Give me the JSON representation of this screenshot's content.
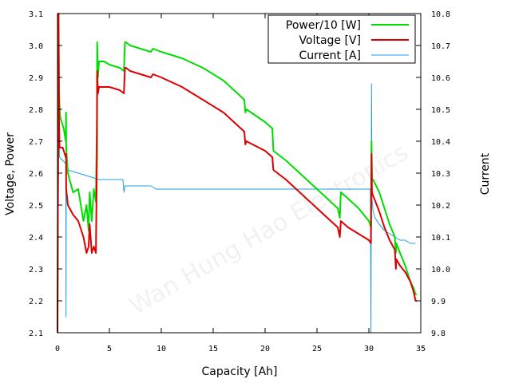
{
  "chart_data": {
    "type": "line",
    "xlabel": "Capacity [Ah]",
    "ylabel": "Voltage, Power",
    "y2label": "Current",
    "xlim": [
      0,
      35
    ],
    "ylim": [
      2.1,
      3.1
    ],
    "y2lim": [
      9.8,
      10.8
    ],
    "xticks": [
      "0",
      "5",
      "10",
      "15",
      "20",
      "25",
      "30",
      "35"
    ],
    "yticks": [
      "2.1",
      "2.2",
      "2.3",
      "2.4",
      "2.5",
      "2.6",
      "2.7",
      "2.8",
      "2.9",
      "3.0",
      "3.1"
    ],
    "y2ticks": [
      "9.8",
      "9.9",
      "10.0",
      "10.1",
      "10.2",
      "10.3",
      "10.4",
      "10.5",
      "10.6",
      "10.7",
      "10.8"
    ],
    "watermark": "Wan Hung Hao Electronics",
    "legend_position": "top-right",
    "series": [
      {
        "name": "Power/10 [W]",
        "color": "#00dd00",
        "axis": "left",
        "x": [
          0,
          0.1,
          0.15,
          0.2,
          0.25,
          0.3,
          0.4,
          0.6,
          0.8,
          0.82,
          0.84,
          1.0,
          1.5,
          2.0,
          2.5,
          2.8,
          3.0,
          3.1,
          3.3,
          3.5,
          3.7,
          3.8,
          3.82,
          3.9,
          4.0,
          4.5,
          5.0,
          6.0,
          6.4,
          6.5,
          6.6,
          7.0,
          8.0,
          9.0,
          9.2,
          10.0,
          12.0,
          14.0,
          16.0,
          18.0,
          18.1,
          18.2,
          20.0,
          20.7,
          20.8,
          22.0,
          24.0,
          26.0,
          27.0,
          27.2,
          27.3,
          28.0,
          29.0,
          30.0,
          30.2,
          30.25,
          30.3,
          30.35,
          30.4,
          31.0,
          31.5,
          32.0,
          32.5,
          32.6,
          32.65,
          33.0,
          33.5,
          34.0,
          34.3,
          34.5,
          34.6
        ],
        "y": [
          2.1,
          3.1,
          2.85,
          2.81,
          2.78,
          2.77,
          2.76,
          2.74,
          2.7,
          2.79,
          2.68,
          2.6,
          2.54,
          2.55,
          2.45,
          2.5,
          2.42,
          2.54,
          2.45,
          2.55,
          2.51,
          2.78,
          3.01,
          2.9,
          2.95,
          2.95,
          2.94,
          2.93,
          2.92,
          3.01,
          3.01,
          3.0,
          2.99,
          2.98,
          2.99,
          2.98,
          2.96,
          2.93,
          2.89,
          2.83,
          2.79,
          2.8,
          2.76,
          2.74,
          2.67,
          2.64,
          2.58,
          2.52,
          2.49,
          2.46,
          2.54,
          2.52,
          2.49,
          2.45,
          2.43,
          2.7,
          2.58,
          2.58,
          2.58,
          2.54,
          2.49,
          2.44,
          2.4,
          2.35,
          2.38,
          2.35,
          2.31,
          2.26,
          2.24,
          2.22,
          2.22
        ]
      },
      {
        "name": "Voltage [V]",
        "color": "#dd0000",
        "axis": "left",
        "x": [
          0,
          0.1,
          0.15,
          0.2,
          0.3,
          0.5,
          0.8,
          0.82,
          0.84,
          1.0,
          1.5,
          2.0,
          2.5,
          2.8,
          3.0,
          3.1,
          3.3,
          3.5,
          3.7,
          3.8,
          3.82,
          3.9,
          4.0,
          5.0,
          6.0,
          6.4,
          6.5,
          6.6,
          7.0,
          8.0,
          9.0,
          9.2,
          10.0,
          12.0,
          14.0,
          16.0,
          18.0,
          18.1,
          18.2,
          20.0,
          20.7,
          20.8,
          22.0,
          24.0,
          26.0,
          27.0,
          27.2,
          27.3,
          28.0,
          29.0,
          30.0,
          30.2,
          30.25,
          30.3,
          30.4,
          31.0,
          31.5,
          32.0,
          32.5,
          32.6,
          32.65,
          33.0,
          33.5,
          34.0,
          34.3,
          34.5,
          34.6
        ],
        "y": [
          2.1,
          3.1,
          2.75,
          2.68,
          2.68,
          2.68,
          2.65,
          2.66,
          2.55,
          2.5,
          2.47,
          2.45,
          2.4,
          2.35,
          2.37,
          2.44,
          2.35,
          2.37,
          2.35,
          2.65,
          2.92,
          2.85,
          2.87,
          2.87,
          2.86,
          2.85,
          2.93,
          2.93,
          2.92,
          2.91,
          2.9,
          2.91,
          2.9,
          2.87,
          2.83,
          2.79,
          2.73,
          2.69,
          2.7,
          2.67,
          2.65,
          2.61,
          2.58,
          2.52,
          2.46,
          2.43,
          2.4,
          2.45,
          2.43,
          2.41,
          2.39,
          2.38,
          2.66,
          2.54,
          2.53,
          2.48,
          2.43,
          2.39,
          2.36,
          2.3,
          2.33,
          2.31,
          2.29,
          2.26,
          2.23,
          2.2,
          2.2
        ]
      },
      {
        "name": "Current [A]",
        "color": "#1ca0dc",
        "axis": "right",
        "x": [
          0,
          0.1,
          0.15,
          0.2,
          0.5,
          0.8,
          0.82,
          0.84,
          0.86,
          1.0,
          2.0,
          3.0,
          4.0,
          5.0,
          6.3,
          6.4,
          6.45,
          6.5,
          7.0,
          8.0,
          9.0,
          9.5,
          10.0,
          12.0,
          15.0,
          18.0,
          20.0,
          22.0,
          25.0,
          27.0,
          28.0,
          29.0,
          30.0,
          30.15,
          30.2,
          30.25,
          30.3,
          30.35,
          30.4,
          30.6,
          31.0,
          31.5,
          32.0,
          32.5,
          33.0,
          33.5,
          34.0,
          34.5
        ],
        "y": [
          9.8,
          10.3,
          10.6,
          10.35,
          10.34,
          10.33,
          9.85,
          10.32,
          10.32,
          10.31,
          10.3,
          10.29,
          10.28,
          10.28,
          10.28,
          10.24,
          10.25,
          10.26,
          10.26,
          10.26,
          10.26,
          10.25,
          10.25,
          10.25,
          10.25,
          10.25,
          10.25,
          10.25,
          10.25,
          10.25,
          10.25,
          10.25,
          10.25,
          10.25,
          9.8,
          10.58,
          10.22,
          10.2,
          10.18,
          10.16,
          10.14,
          10.12,
          10.11,
          10.1,
          10.09,
          10.09,
          10.08,
          10.08
        ]
      }
    ]
  }
}
